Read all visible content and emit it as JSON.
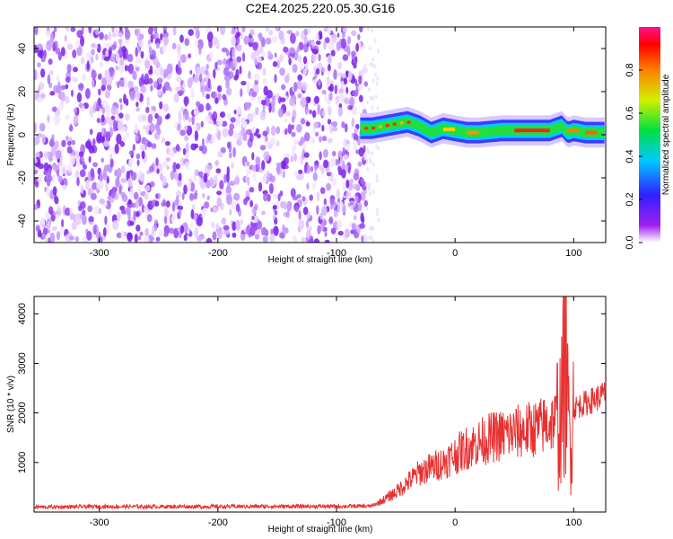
{
  "figure": {
    "title": "C2E4.2025.220.05.30.G16"
  },
  "chart_data": [
    {
      "type": "heatmap",
      "xlabel": "Height of straight line (km)",
      "ylabel": "Frequency (Hz)",
      "xlim": [
        -355,
        127
      ],
      "ylim": [
        -50,
        50
      ],
      "x_ticks": [
        -300,
        -200,
        -100,
        0,
        100
      ],
      "y_ticks": [
        -40,
        -20,
        0,
        20,
        40
      ],
      "x_tick_labels": [
        "-300",
        "-200",
        "-100",
        "0",
        "100"
      ],
      "y_tick_labels": [
        "-40",
        "-20",
        "0",
        "20",
        "40"
      ],
      "noise_region_x": [
        -355,
        -75
      ],
      "signal_ridge": {
        "x": [
          -80,
          -70,
          -60,
          -50,
          -40,
          -30,
          -20,
          -15,
          -10,
          0,
          10,
          20,
          40,
          60,
          80,
          85,
          90,
          95,
          100,
          110,
          120,
          127
        ],
        "frequency": [
          3,
          3,
          4,
          5,
          6,
          4,
          1,
          2,
          3,
          2,
          1,
          1,
          2,
          2,
          2,
          3,
          4,
          1,
          2,
          1,
          1,
          1
        ]
      },
      "colorbar": {
        "label": "Normalized spectral amplitude",
        "range": [
          0.0,
          1.0
        ],
        "ticks": [
          0.0,
          0.2,
          0.4,
          0.6,
          0.8
        ],
        "tick_labels": [
          "0.0",
          "0.2",
          "0.4",
          "0.6",
          "0.8"
        ]
      },
      "grid": false
    },
    {
      "type": "line",
      "xlabel": "Height of straight line (km)",
      "ylabel": "SNR (10 * v/v)",
      "xlim": [
        -355,
        127
      ],
      "ylim": [
        0,
        4350
      ],
      "x_ticks": [
        -300,
        -200,
        -100,
        0,
        100
      ],
      "y_ticks": [
        1000,
        2000,
        3000,
        4000
      ],
      "x_tick_labels": [
        "-300",
        "-200",
        "-100",
        "0",
        "100"
      ],
      "y_tick_labels": [
        "1000",
        "2000",
        "3000",
        "4000"
      ],
      "series": [
        {
          "color": "#e83030",
          "x": [
            -355,
            -300,
            -250,
            -200,
            -150,
            -100,
            -70,
            -60,
            -50,
            -40,
            -30,
            -20,
            -10,
            0,
            10,
            20,
            30,
            40,
            50,
            60,
            70,
            80,
            85,
            90,
            93,
            95,
            97,
            100,
            110,
            120,
            127
          ],
          "y": [
            100,
            110,
            110,
            110,
            115,
            115,
            120,
            250,
            400,
            600,
            800,
            900,
            1000,
            1150,
            1300,
            1400,
            1500,
            1550,
            1600,
            1650,
            1700,
            1800,
            1850,
            2000,
            3500,
            2000,
            1500,
            2100,
            2200,
            2300,
            2400
          ]
        }
      ],
      "grid": false
    }
  ]
}
